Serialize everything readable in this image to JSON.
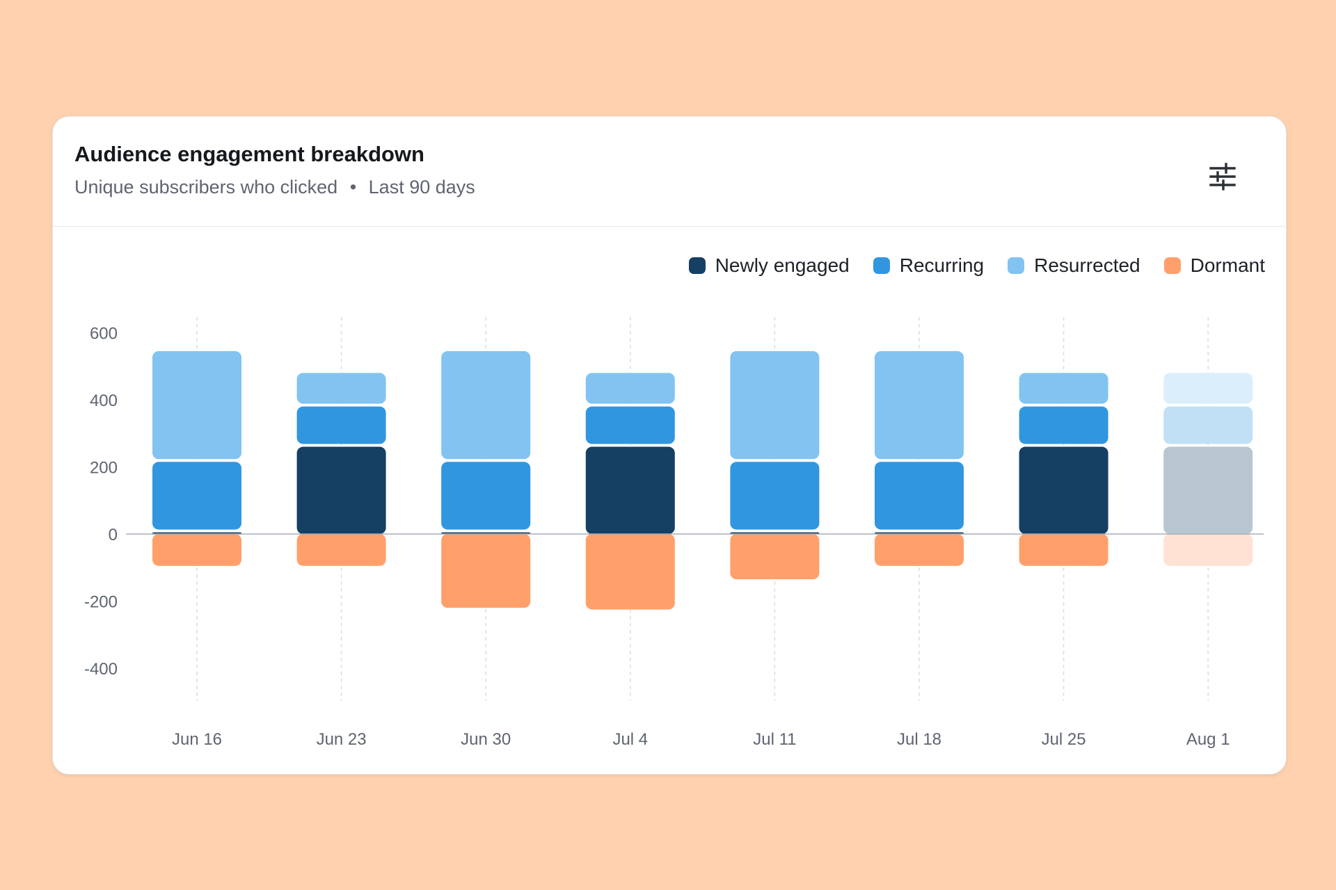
{
  "card": {
    "title": "Audience engagement breakdown",
    "subtitle_metric": "Unique subscribers who clicked",
    "subtitle_separator": "•",
    "subtitle_period": "Last 90 days",
    "filter_icon": "sliders-icon"
  },
  "chart_data": {
    "type": "bar",
    "stacked": true,
    "categories": [
      "Jun 16",
      "Jun 23",
      "Jun 30",
      "Jul 4",
      "Jul 11",
      "Jul 18",
      "Jul 25",
      "Aug 1"
    ],
    "series": [
      {
        "name": "Newly engaged",
        "color": "#153f63",
        "values": [
          5,
          260,
          5,
          260,
          5,
          5,
          260,
          260
        ]
      },
      {
        "name": "Recurring",
        "color": "#3196e0",
        "values": [
          210,
          120,
          210,
          120,
          210,
          210,
          120,
          120
        ]
      },
      {
        "name": "Resurrected",
        "color": "#82c3f2",
        "values": [
          330,
          100,
          330,
          100,
          330,
          330,
          100,
          100
        ]
      },
      {
        "name": "Dormant",
        "color": "#ffa06b",
        "values": [
          -95,
          -95,
          -220,
          -225,
          -135,
          -95,
          -95,
          -95
        ]
      }
    ],
    "partial_period_categories": [
      "Aug 1"
    ],
    "partial_period_colors": {
      "Newly engaged": "#b8c6cf",
      "Recurring": "#c1e0f6",
      "Resurrected": "#dbeefb",
      "Dormant": "#ffe2d4"
    },
    "ylim": [
      -500,
      600
    ],
    "yticks": [
      600,
      400,
      200,
      0,
      -200,
      -400
    ],
    "grid": "vertical-dashed",
    "legend_position": "top-right",
    "xlabel": "",
    "ylabel": ""
  }
}
